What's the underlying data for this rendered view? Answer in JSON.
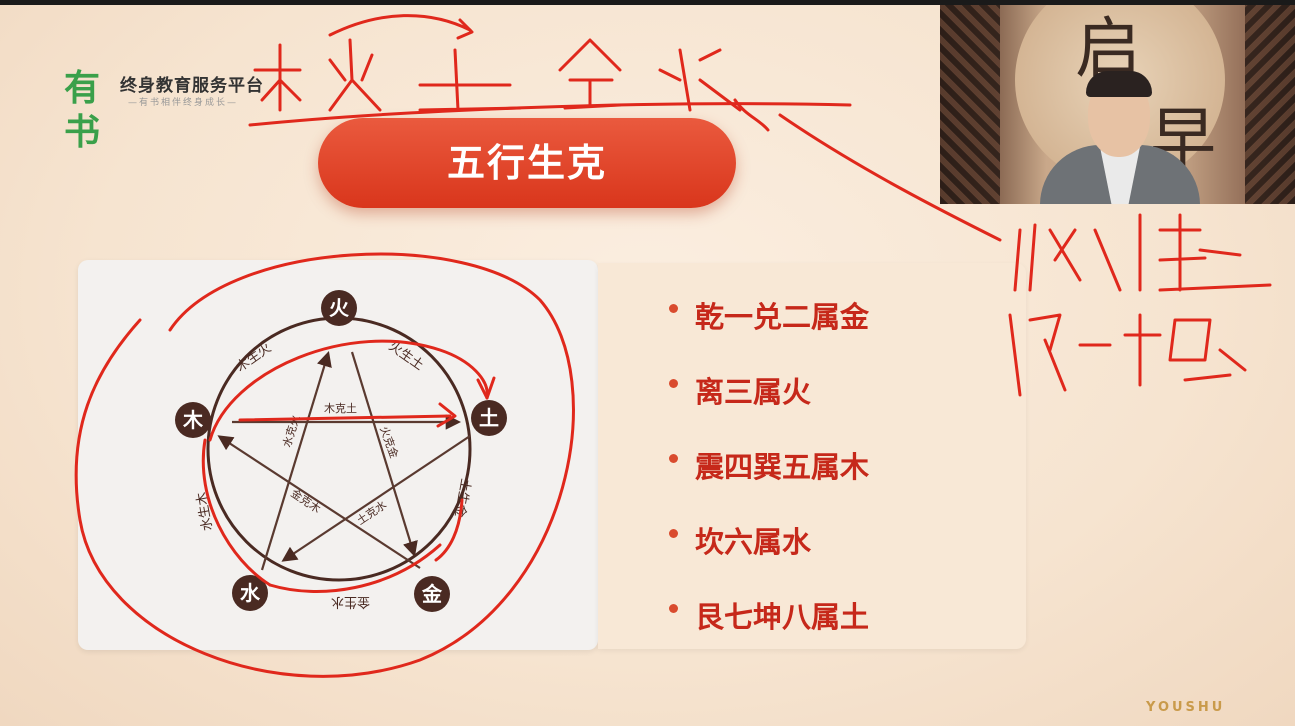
{
  "logo": {
    "mark": "有书",
    "title": "终身教育服务平台",
    "subtitle": "—有书相伴终身成长—"
  },
  "slide_title": "五行生克",
  "diagram": {
    "elements": {
      "top": "火",
      "right": "土",
      "bottom_right": "金",
      "bottom_left": "水",
      "left": "木"
    },
    "sheng_labels": [
      "木生火",
      "火生土",
      "土生金",
      "金生水",
      "水生木"
    ],
    "ke_labels": [
      "木克土",
      "火克金",
      "土克水",
      "金克木",
      "水克火"
    ]
  },
  "bullets": [
    "乾一兑二属金",
    "离三属火",
    "震四巽五属木",
    "坎六属水",
    "艮七坤八属土"
  ],
  "brand": "YOUSHU",
  "colors": {
    "accent": "#d9361c",
    "element_circle": "#4a2a22",
    "ink": "#e0281c"
  }
}
